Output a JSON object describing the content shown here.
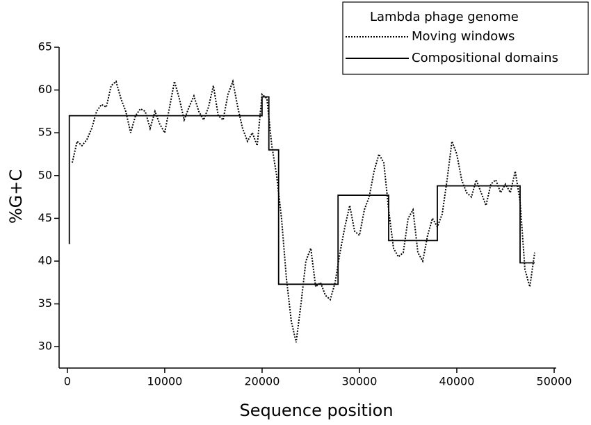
{
  "chart_data": {
    "type": "line",
    "x_label": "Sequence position",
    "y_label": "%G+C",
    "legend_title": "Lambda phage genome",
    "legend": "top-right",
    "xlim": [
      -850,
      50000
    ],
    "ylim": [
      27.5,
      65
    ],
    "xticks": [
      0,
      10000,
      20000,
      30000,
      40000,
      50000
    ],
    "yticks": [
      30,
      35,
      40,
      45,
      50,
      55,
      60,
      65
    ],
    "series": [
      {
        "name": "Moving windows",
        "color": "#000000",
        "style": "dotted",
        "x": [
          500,
          1000,
          1500,
          2000,
          2500,
          3000,
          3500,
          4000,
          4500,
          5000,
          5500,
          6000,
          6500,
          7000,
          7500,
          8000,
          8500,
          9000,
          9500,
          10000,
          10500,
          11000,
          11500,
          12000,
          12500,
          13000,
          13500,
          14000,
          14500,
          15000,
          15500,
          16000,
          16500,
          17000,
          17500,
          18000,
          18500,
          19000,
          19500,
          20000,
          20500,
          21000,
          21500,
          22000,
          22500,
          23000,
          23500,
          24000,
          24500,
          25000,
          25500,
          26000,
          26500,
          27000,
          27500,
          28000,
          28500,
          29000,
          29500,
          30000,
          30500,
          31000,
          31500,
          32000,
          32500,
          33000,
          33500,
          34000,
          34500,
          35000,
          35500,
          36000,
          36500,
          37000,
          37500,
          38000,
          38500,
          39000,
          39500,
          40000,
          40500,
          41000,
          41500,
          42000,
          42500,
          43000,
          43500,
          44000,
          44500,
          45000,
          45500,
          46000,
          46500,
          47000,
          47500,
          48000
        ],
        "values": [
          51.5,
          54,
          53.5,
          54.2,
          55.5,
          57.5,
          58.3,
          58,
          60.5,
          61,
          59,
          57.5,
          55,
          57,
          57.8,
          57.5,
          55.5,
          57.5,
          56,
          55,
          58,
          61,
          59,
          56.5,
          58,
          59.3,
          57.5,
          56.5,
          58,
          60.5,
          57,
          56.5,
          59.5,
          61,
          58,
          55.5,
          54,
          55,
          53.5,
          59.5,
          59,
          53.5,
          50,
          45,
          38,
          33,
          30.5,
          35,
          40,
          41.5,
          37,
          37.5,
          36,
          35.5,
          37.5,
          41,
          44,
          46.5,
          43.5,
          43,
          46,
          47.5,
          50.5,
          52.5,
          51.5,
          46,
          41.5,
          40.5,
          41,
          45,
          46,
          41,
          40,
          43,
          45,
          44,
          45.5,
          49.5,
          54,
          52.5,
          49.5,
          48,
          47.5,
          49.5,
          48,
          46.5,
          49,
          49.5,
          48,
          49,
          48,
          50.5,
          47,
          39,
          37,
          41
        ]
      },
      {
        "name": "Compositional domains",
        "color": "#000000",
        "style": "solid",
        "x": [
          200,
          200,
          20000,
          20000,
          20700,
          20700,
          21700,
          21700,
          27800,
          27800,
          33000,
          33000,
          38000,
          38000,
          46500,
          46500,
          48000
        ],
        "values": [
          42,
          57,
          57,
          59.2,
          59.2,
          53,
          53,
          37.3,
          37.3,
          47.7,
          47.7,
          42.4,
          42.4,
          48.8,
          48.8,
          39.8,
          39.8
        ]
      }
    ]
  }
}
